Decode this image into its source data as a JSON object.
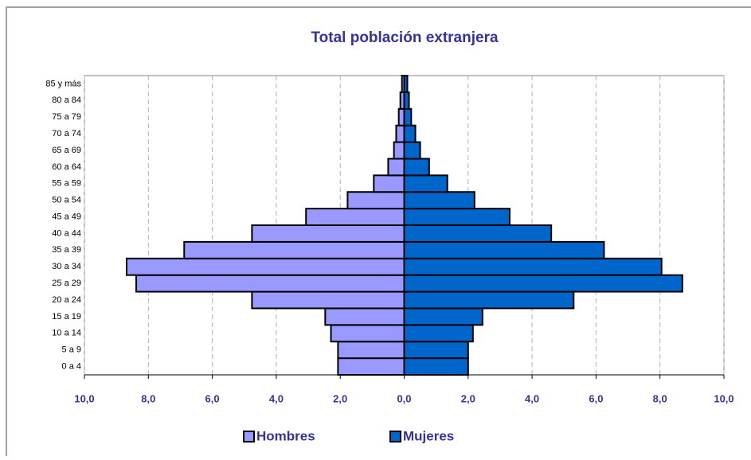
{
  "chart_data": {
    "type": "pyramid",
    "title": "Total población extranjera",
    "categories": [
      "0 a 4",
      "5 a 9",
      "10 a 14",
      "15 a 19",
      "20 a 24",
      "25 a 29",
      "30 a 34",
      "35 a 39",
      "40 a 44",
      "45 a 49",
      "50 a 54",
      "55 a 59",
      "60 a 64",
      "65 a 69",
      "70 a 74",
      "75 a 79",
      "80 a 84",
      "85 y más"
    ],
    "series": [
      {
        "name": "Hombres",
        "color": "#9999ff",
        "values": [
          -2.07,
          -2.07,
          -2.29,
          -2.47,
          -4.76,
          -8.38,
          -8.68,
          -6.88,
          -4.76,
          -3.07,
          -1.77,
          -0.95,
          -0.5,
          -0.32,
          -0.25,
          -0.17,
          -0.12,
          -0.07
        ]
      },
      {
        "name": "Mujeres",
        "color": "#0066cc",
        "values": [
          2.0,
          2.0,
          2.15,
          2.45,
          5.3,
          8.7,
          8.05,
          6.25,
          4.6,
          3.3,
          2.2,
          1.35,
          0.78,
          0.5,
          0.35,
          0.22,
          0.15,
          0.1
        ]
      }
    ],
    "xlim": [
      -10,
      10
    ],
    "xticks": [
      {
        "value": -10,
        "label": "10,0"
      },
      {
        "value": -8,
        "label": "8,0"
      },
      {
        "value": -6,
        "label": "6,0"
      },
      {
        "value": -4,
        "label": "4,0"
      },
      {
        "value": -2,
        "label": "2,0"
      },
      {
        "value": 0,
        "label": "0,0"
      },
      {
        "value": 2,
        "label": "2,0"
      },
      {
        "value": 4,
        "label": "4,0"
      },
      {
        "value": 6,
        "label": "6,0"
      },
      {
        "value": 8,
        "label": "8,0"
      },
      {
        "value": 10,
        "label": "10,0"
      }
    ],
    "grid": true,
    "legend": "bottom"
  }
}
